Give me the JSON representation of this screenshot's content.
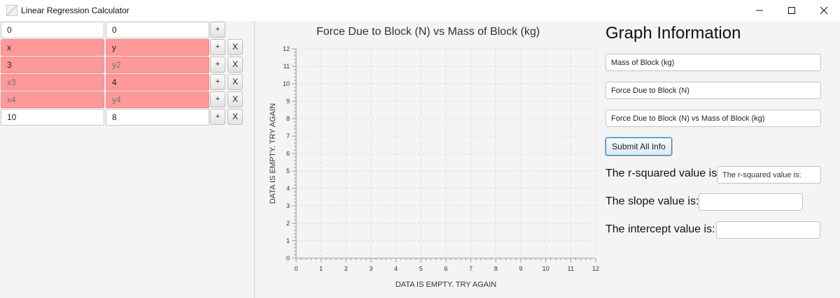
{
  "window": {
    "title": "Linear Regression Calculator",
    "minimize_icon": "minimize-icon",
    "maximize_icon": "maximize-icon",
    "close_icon": "close-icon"
  },
  "data_table": {
    "plus_label": "+",
    "delete_label": "X",
    "rows": [
      {
        "x": "0",
        "y": "0",
        "x_ph": "",
        "y_ph": "",
        "x_error": false,
        "y_error": false,
        "has_delete": false
      },
      {
        "x": "x",
        "y": "y",
        "x_ph": "",
        "y_ph": "",
        "x_error": true,
        "y_error": true,
        "has_delete": true
      },
      {
        "x": "3",
        "y": "",
        "x_ph": "",
        "y_ph": "y2",
        "x_error": true,
        "y_error": true,
        "has_delete": true
      },
      {
        "x": "",
        "y": "4",
        "x_ph": "x3",
        "y_ph": "",
        "x_error": true,
        "y_error": true,
        "has_delete": true
      },
      {
        "x": "",
        "y": "",
        "x_ph": "x4",
        "y_ph": "y4",
        "x_error": true,
        "y_error": true,
        "has_delete": true
      },
      {
        "x": "10",
        "y": "8",
        "x_ph": "",
        "y_ph": "",
        "x_error": false,
        "y_error": false,
        "has_delete": true
      }
    ]
  },
  "chart_data": {
    "type": "scatter",
    "title": "Force Due to Block (N) vs Mass of Block (kg)",
    "xlabel": "DATA IS EMPTY. TRY AGAIN",
    "ylabel": "DATA IS EMPTY. TRY AGAIN",
    "xlim": [
      0,
      12
    ],
    "ylim": [
      0,
      12
    ],
    "xticks": [
      0,
      1,
      2,
      3,
      4,
      5,
      6,
      7,
      8,
      9,
      10,
      11,
      12
    ],
    "yticks": [
      0,
      1,
      2,
      3,
      4,
      5,
      6,
      7,
      8,
      9,
      10,
      11,
      12
    ],
    "grid": true,
    "series": []
  },
  "info": {
    "heading": "Graph Information",
    "x_axis_field": "Mass of Block (kg)",
    "y_axis_field": "Force Due to Block (N)",
    "title_field": "Force Due to Block (N) vs Mass of Block (kg)",
    "submit_label": "Submit All Info",
    "r_squared_label": "The r-squared value is:",
    "r_squared_value": "The r-squared value is:",
    "slope_label": "The slope value is:",
    "slope_value": "",
    "intercept_label": "The intercept value is:",
    "intercept_value": ""
  },
  "colors": {
    "error_cell": "#ff9999",
    "plot_background": "#f4f4f4",
    "grid_line": "#dcdcdc"
  }
}
